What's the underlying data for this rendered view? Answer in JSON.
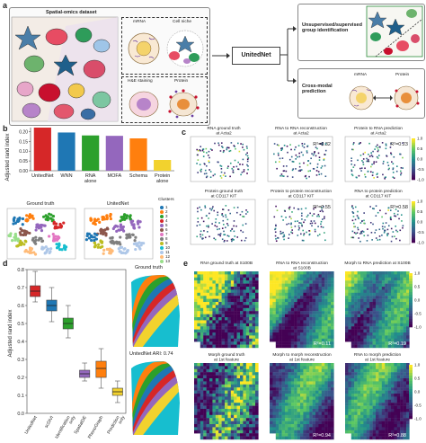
{
  "panel_a": {
    "label": "a",
    "dataset_title": "Spatial-omics dataset",
    "mrna_label": "mRNA",
    "cell_niche_label": "Cell niche",
    "he_label": "H&E staining",
    "protein_label": "Protein",
    "model_name": "UnitedNet",
    "task1": "Unsupervised/supervised\ngroup identification",
    "task2": "Cross-modal\nprediction",
    "task2_mrna": "mRNA",
    "task2_protein": "Protein"
  },
  "panel_b": {
    "label": "b",
    "umap_titles": [
      "Ground truth",
      "UnitedNet"
    ],
    "clusters_title": "Clusters",
    "clusters": [
      "1",
      "2",
      "3",
      "4",
      "5",
      "6",
      "7",
      "8",
      "9",
      "10",
      "11",
      "12",
      "13"
    ],
    "cluster_colors": [
      "#1f77b4",
      "#ff7f0e",
      "#2ca02c",
      "#d62728",
      "#9467bd",
      "#8c564b",
      "#e377c2",
      "#7f7f7f",
      "#bcbd22",
      "#17becf",
      "#aec7e8",
      "#ffbb78",
      "#98df8a"
    ]
  },
  "panel_c": {
    "label": "c",
    "titles": [
      "RNA ground truth\nat Acta2",
      "RNA to RNA reconstruction\nat Acta2",
      "Protein to RNA prediction\nat Acta2",
      "Protein ground truth\nat CD117 KIT",
      "Protein to protein reconstruction\nat CD117 KIT",
      "RNA to protein prediction\nat CD117 KIT"
    ],
    "r2": [
      "",
      "R²=0.32",
      "R²=0.23",
      "",
      "R²=0.55",
      "R²=0.58"
    ],
    "colorbar_ticks": [
      "1.0",
      "0.5",
      "0.0",
      "-0.5",
      "-1.0"
    ]
  },
  "panel_d": {
    "label": "d",
    "ground_truth_label": "Ground truth",
    "unitednet_label": "UnitedNet ARI: 0.74"
  },
  "panel_e": {
    "label": "e",
    "titles": [
      "RNA ground truth at S100B",
      "RNA to RNA reconstruction\nat S100B",
      "Morph to RNA prediction at S100B",
      "Morph ground truth\nat 1st feature",
      "Morph to morph reconstruction\nat 1st feature",
      "RNA to morph prediction\nat 1st feature"
    ],
    "r2": [
      "",
      "R²=0.11",
      "R²=0.19",
      "",
      "R²=0.94",
      "R²=0.88"
    ],
    "colorbar_ticks": [
      "1.0",
      "0.5",
      "0.0",
      "-0.5",
      "-1.0"
    ]
  },
  "chart_data": [
    {
      "type": "bar",
      "panel": "b",
      "ylabel": "Adjusted rand index",
      "categories": [
        "UnitedNet",
        "WNN",
        "RNA alone",
        "MOFA",
        "Schema",
        "Protein alone"
      ],
      "values": [
        0.22,
        0.195,
        0.18,
        0.178,
        0.165,
        0.055
      ],
      "colors": [
        "#d62728",
        "#1f77b4",
        "#2ca02c",
        "#9467bd",
        "#ff7f0e",
        "#f2d22e"
      ],
      "yticks": [
        "0.00",
        "0.05",
        "0.10",
        "0.15",
        "0.20"
      ],
      "ylim": [
        0,
        0.22
      ]
    },
    {
      "type": "box",
      "panel": "d",
      "ylabel": "Adjusted rand index",
      "categories": [
        "UnitedNet",
        "scDiVI",
        "Identification only",
        "SpatialDE",
        "PhenoGraph",
        "Prediction only"
      ],
      "series": [
        {
          "min": 0.62,
          "q1": 0.65,
          "median": 0.68,
          "q3": 0.71,
          "max": 0.79,
          "color": "#d62728"
        },
        {
          "min": 0.51,
          "q1": 0.57,
          "median": 0.6,
          "q3": 0.63,
          "max": 0.7,
          "color": "#1f77b4"
        },
        {
          "min": 0.42,
          "q1": 0.47,
          "median": 0.5,
          "q3": 0.53,
          "max": 0.6,
          "color": "#2ca02c"
        },
        {
          "min": 0.18,
          "q1": 0.2,
          "median": 0.22,
          "q3": 0.24,
          "max": 0.28,
          "color": "#9467bd"
        },
        {
          "min": 0.14,
          "q1": 0.2,
          "median": 0.25,
          "q3": 0.29,
          "max": 0.36,
          "color": "#ff7f0e"
        },
        {
          "min": 0.06,
          "q1": 0.1,
          "median": 0.12,
          "q3": 0.14,
          "max": 0.18,
          "color": "#f2d22e"
        }
      ],
      "yticks": [
        "0.0",
        "0.1",
        "0.2",
        "0.3",
        "0.4",
        "0.5",
        "0.6",
        "0.7",
        "0.8"
      ],
      "ylim": [
        0,
        0.8
      ]
    }
  ]
}
